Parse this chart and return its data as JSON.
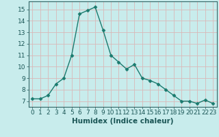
{
  "x": [
    0,
    1,
    2,
    3,
    4,
    5,
    6,
    7,
    8,
    9,
    10,
    11,
    12,
    13,
    14,
    15,
    16,
    17,
    18,
    19,
    20,
    21,
    22,
    23
  ],
  "y": [
    7.2,
    7.2,
    7.5,
    8.5,
    9.0,
    11.0,
    14.6,
    14.9,
    15.2,
    13.2,
    11.0,
    10.4,
    9.8,
    10.2,
    9.0,
    8.8,
    8.5,
    8.0,
    7.5,
    7.0,
    7.0,
    6.8,
    7.1,
    6.8
  ],
  "line_color": "#1a7a6e",
  "marker": "D",
  "marker_size": 2.5,
  "bg_color": "#c8ecec",
  "grid_color": "#d9b8b8",
  "xlabel": "Humidex (Indice chaleur)",
  "xlim": [
    -0.5,
    23.5
  ],
  "ylim": [
    6.5,
    15.7
  ],
  "xticks": [
    0,
    1,
    2,
    3,
    4,
    5,
    6,
    7,
    8,
    9,
    10,
    11,
    12,
    13,
    14,
    15,
    16,
    17,
    18,
    19,
    20,
    21,
    22,
    23
  ],
  "yticks": [
    7,
    8,
    9,
    10,
    11,
    12,
    13,
    14,
    15
  ],
  "tick_fontsize": 6.5,
  "xlabel_fontsize": 7.5,
  "spine_color": "#336666"
}
